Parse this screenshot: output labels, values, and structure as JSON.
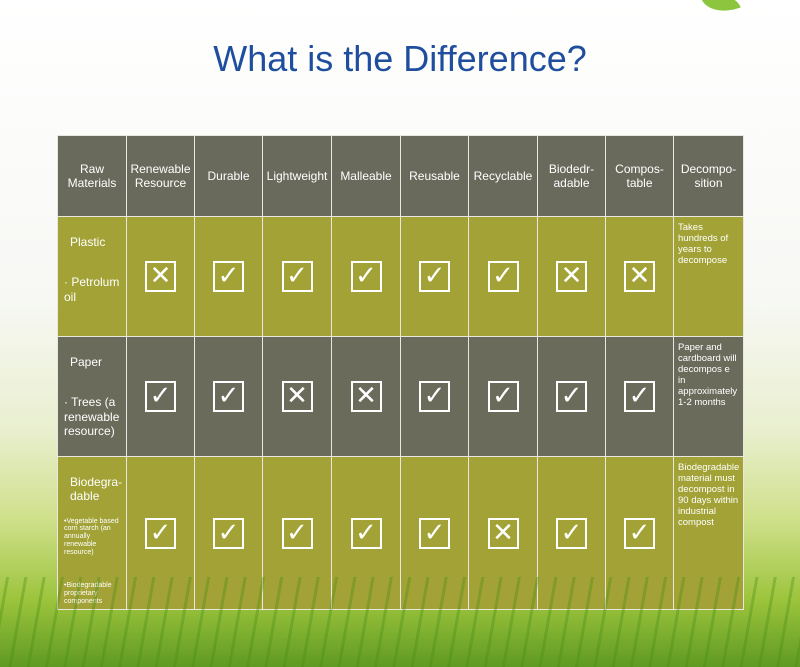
{
  "title": "What is the Difference?",
  "headers": [
    "Raw Materials",
    "Renewable Resource",
    "Durable",
    "Lightweight",
    "Malleable",
    "Reusable",
    "Recyclable",
    "Biodedr-adable",
    "Compos-table",
    "Decompo-sition"
  ],
  "header_lines": [
    [
      "Raw",
      "Materials"
    ],
    [
      "Renewable",
      "Resource"
    ],
    [
      "Durable"
    ],
    [
      "Lightweight"
    ],
    [
      "Malleable"
    ],
    [
      "Reusable"
    ],
    [
      "Recyclable"
    ],
    [
      "Biodedr-",
      "adable"
    ],
    [
      "Compos-",
      "table"
    ],
    [
      "Decompo-",
      "sition"
    ]
  ],
  "mark_symbols": {
    "check": "✓",
    "cross": "✕"
  },
  "rows": [
    {
      "material": "Plastic",
      "source": "· Petrolum oil",
      "marks": [
        "cross",
        "check",
        "check",
        "check",
        "check",
        "check",
        "cross",
        "cross"
      ],
      "decomposition": "Takes hundreds of years to decompose"
    },
    {
      "material": "Paper",
      "source": "· Trees (a renewable resource)",
      "marks": [
        "check",
        "check",
        "cross",
        "cross",
        "check",
        "check",
        "check",
        "check"
      ],
      "decomposition": "Paper and cardboard will decompos e in approximately 1-2 months"
    },
    {
      "material": "Biodegra-dable",
      "source": "•Vegetable based corn starch (an annually renewable resource)",
      "source2": "•Biodegradable proprietary components",
      "marks": [
        "check",
        "check",
        "check",
        "check",
        "check",
        "cross",
        "check",
        "check"
      ],
      "decomposition": "Biodegradable material must decompost in 90 days within industrial compost"
    }
  ],
  "colors": {
    "title": "#1f4e9e",
    "header_bg": "#6a6a5c",
    "green_row": "#a2a236",
    "dark_row": "#6b6b5c"
  }
}
